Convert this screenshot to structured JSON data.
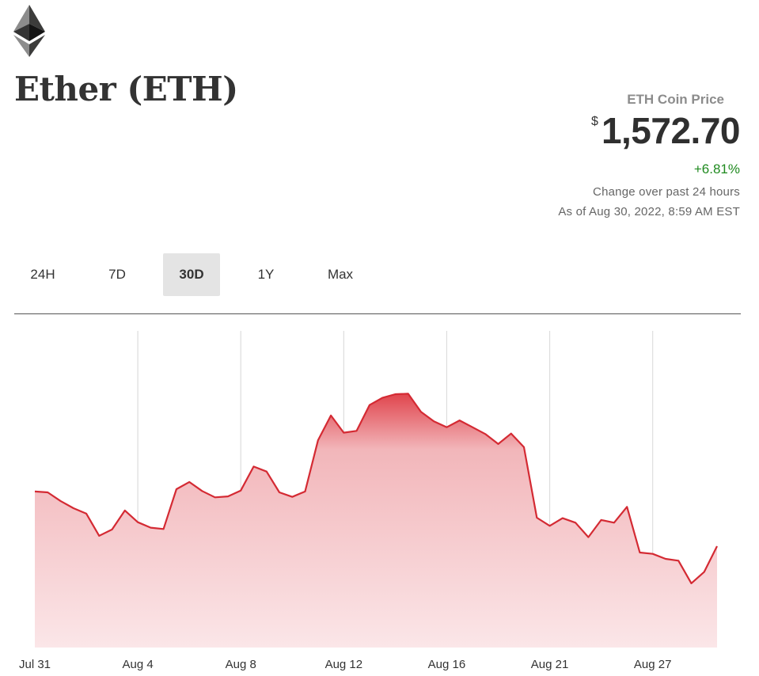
{
  "icons": {
    "logo": "ethereum-logo-icon"
  },
  "header": {
    "title": "Ether (ETH)"
  },
  "price": {
    "label": "ETH Coin Price",
    "currency_symbol": "$",
    "value": "1,572.70",
    "change_percent": "+6.81%",
    "change_note": "Change over past 24 hours",
    "as_of": "As of Aug 30, 2022, 8:59 AM EST",
    "change_color": "#1f8a1f"
  },
  "tabs": [
    {
      "label": "24H",
      "active": false
    },
    {
      "label": "7D",
      "active": false
    },
    {
      "label": "30D",
      "active": true
    },
    {
      "label": "1Y",
      "active": false
    },
    {
      "label": "Max",
      "active": false
    }
  ],
  "colors": {
    "line": "#d42a33",
    "fill_top": "#e0454d",
    "fill_bottom": "#fbe6e8",
    "grid": "#dddddd"
  },
  "chart_data": {
    "type": "area",
    "title": "",
    "xlabel": "",
    "ylabel": "",
    "grid": true,
    "xtick_labels": [
      {
        "label": "Jul 31",
        "index": 0
      },
      {
        "label": "Aug 4",
        "index": 8
      },
      {
        "label": "Aug 8",
        "index": 16
      },
      {
        "label": "Aug 12",
        "index": 24
      },
      {
        "label": "Aug 16",
        "index": 32
      },
      {
        "label": "Aug 21",
        "index": 40
      },
      {
        "label": "Aug 27",
        "index": 48
      }
    ],
    "ylim": [
      1350,
      2050
    ],
    "series": [
      {
        "values": [
          1695,
          1693,
          1674,
          1658,
          1646,
          1597,
          1611,
          1653,
          1627,
          1615,
          1612,
          1700,
          1716,
          1696,
          1682,
          1684,
          1697,
          1750,
          1739,
          1693,
          1683,
          1695,
          1808,
          1863,
          1825,
          1829,
          1886,
          1902,
          1910,
          1911,
          1871,
          1850,
          1837,
          1852,
          1837,
          1822,
          1800,
          1823,
          1793,
          1637,
          1619,
          1636,
          1626,
          1594,
          1632,
          1626,
          1661,
          1560,
          1557,
          1546,
          1542,
          1492,
          1517,
          1574
        ]
      }
    ]
  }
}
